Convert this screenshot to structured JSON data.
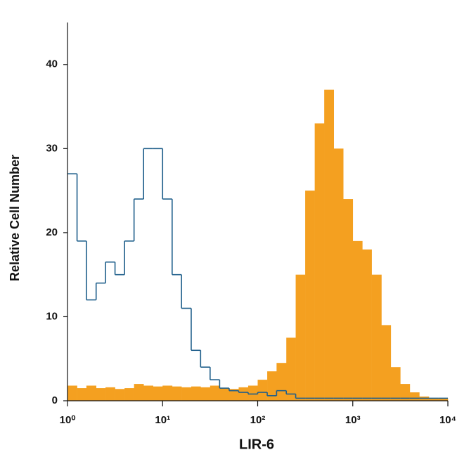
{
  "chart_data": {
    "type": "histogram",
    "x_label": "LIR-6",
    "y_label": "Relative Cell Number",
    "x_log": true,
    "bins": [
      1,
      1.26,
      1.58,
      2,
      2.51,
      3.16,
      3.98,
      5.01,
      6.31,
      7.94,
      10,
      12.6,
      15.8,
      20,
      25.1,
      31.6,
      39.8,
      50.1,
      63.1,
      79.4,
      100,
      126,
      158,
      200,
      251,
      316,
      398,
      501,
      631,
      794,
      1000,
      1260,
      1580,
      2000,
      2510,
      3160,
      3980,
      5010,
      6310,
      7940,
      10000
    ],
    "series": [
      {
        "color": "#f4a020",
        "filled": true,
        "values": [
          1.8,
          1.5,
          1.8,
          1.5,
          1.6,
          1.4,
          1.5,
          2,
          1.8,
          1.7,
          1.8,
          1.7,
          1.6,
          1.7,
          1.6,
          1.8,
          1.5,
          1.4,
          1.6,
          1.8,
          2.5,
          3.5,
          4.5,
          7.5,
          15,
          25,
          33,
          37,
          30,
          24,
          19,
          18,
          15,
          9,
          4,
          2,
          1,
          0.5,
          0.3,
          0.3
        ]
      },
      {
        "color": "#1f5f8b",
        "filled": false,
        "values": [
          27,
          19,
          12,
          14,
          16.5,
          15,
          19,
          24,
          30,
          30,
          24,
          15,
          11,
          6,
          4,
          2.5,
          1.5,
          1.2,
          1,
          0.8,
          1,
          0.6,
          1.2,
          0.8,
          0.3,
          0.3,
          0.3,
          0.3,
          0.3,
          0.3,
          0.3,
          0.3,
          0.3,
          0.3,
          0.3,
          0.3,
          0.3,
          0.3,
          0.3,
          0.3
        ]
      }
    ],
    "xlim": [
      1,
      10000
    ],
    "xticks": [
      {
        "value": 1,
        "label": "10⁰"
      },
      {
        "value": 10,
        "label": "10¹"
      },
      {
        "value": 100,
        "label": "10²"
      },
      {
        "value": 1000,
        "label": "10³"
      },
      {
        "value": 10000,
        "label": "10⁴"
      }
    ],
    "ylim": [
      0,
      45
    ],
    "yticks": [
      0,
      10,
      20,
      30,
      40
    ]
  }
}
